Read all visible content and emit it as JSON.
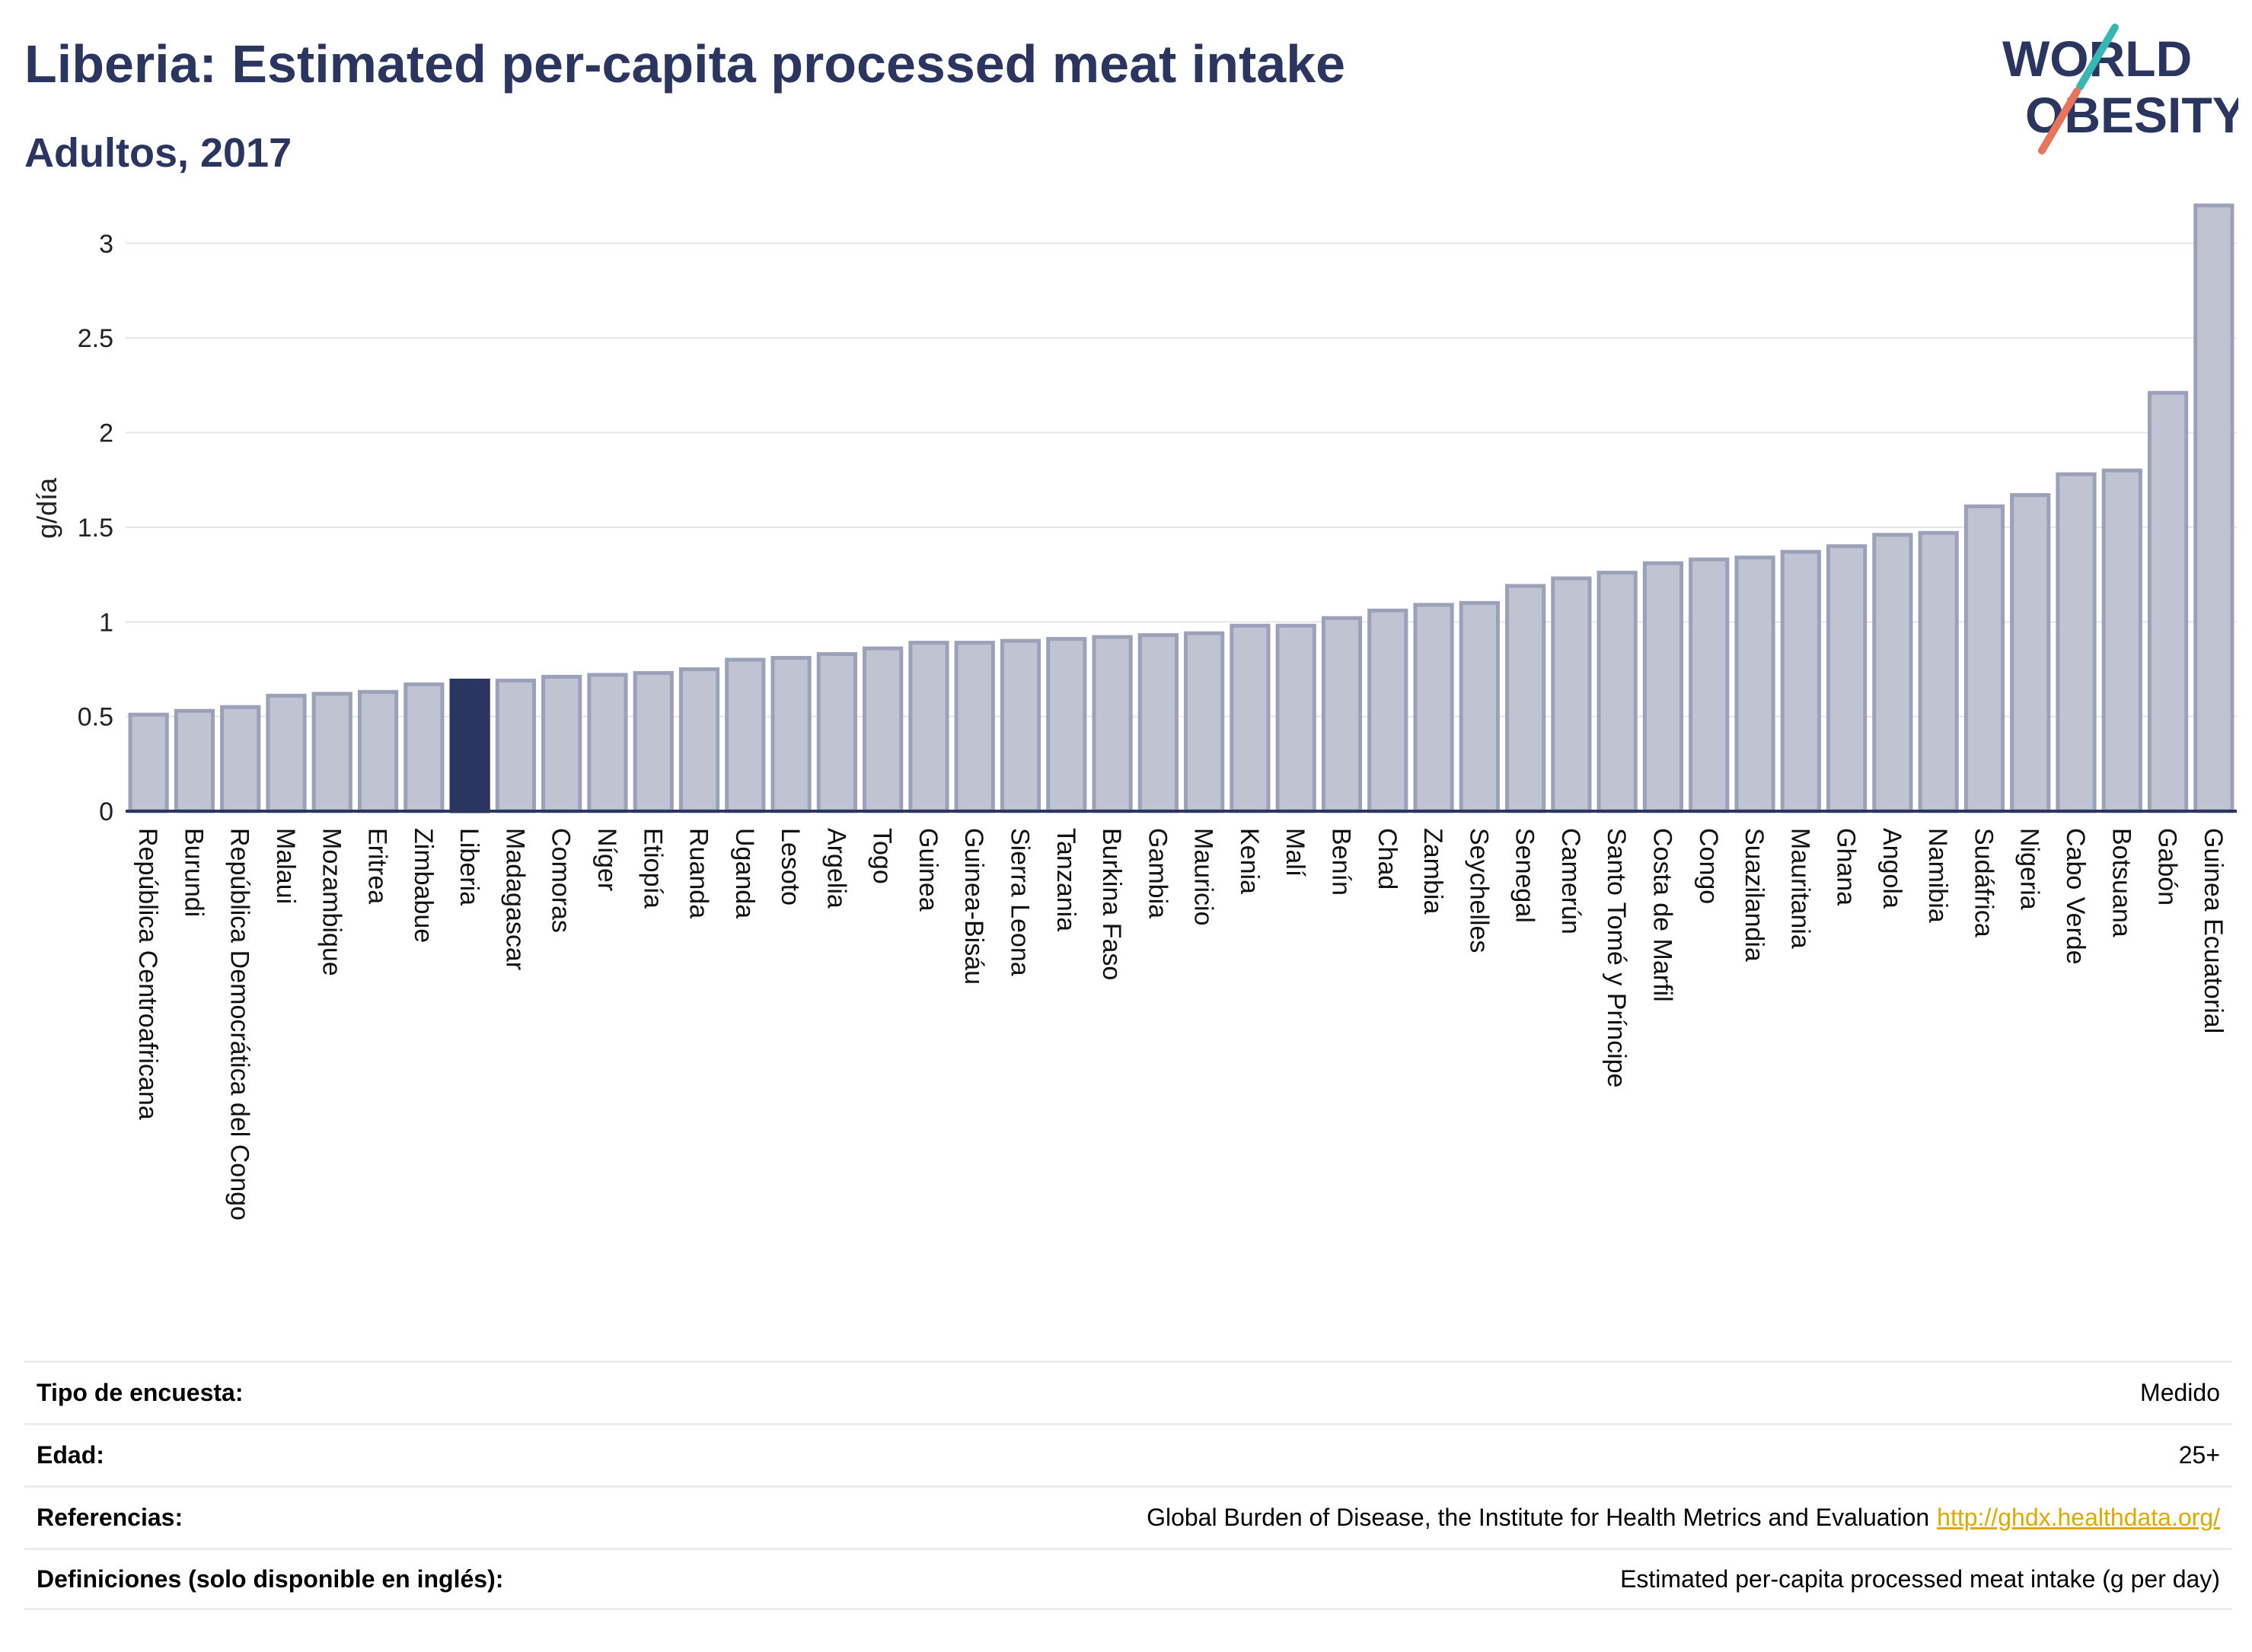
{
  "header": {
    "title": "Liberia: Estimated per-capita processed meat intake",
    "subtitle": "Adultos, 2017"
  },
  "logo": {
    "line1": "WORLD",
    "line2": "OBESITY"
  },
  "colors": {
    "title": "#2a3560",
    "bar": "#bfc3d2",
    "bar_stroke": "#9ba1b8",
    "highlight": "#2a3560",
    "link": "#e0a800",
    "grid": "#e6e6e6",
    "logo_teal": "#36b7b4",
    "logo_coral": "#e8745c"
  },
  "chart_data": {
    "type": "bar",
    "title": "Liberia: Estimated per-capita processed meat intake",
    "subtitle": "Adultos, 2017",
    "xlabel": "",
    "ylabel": "g/día",
    "ylim": [
      0,
      3.2
    ],
    "yticks": [
      0,
      0.5,
      1,
      1.5,
      2,
      2.5,
      3
    ],
    "ytick_labels": [
      "0",
      "0.5",
      "1",
      "1.5",
      "2",
      "2.5",
      "3"
    ],
    "grid": true,
    "legend": "none",
    "highlight": "Liberia",
    "categories": [
      "República Centroafricana",
      "Burundi",
      "República Democrática del Congo",
      "Malaui",
      "Mozambique",
      "Eritrea",
      "Zimbabue",
      "Liberia",
      "Madagascar",
      "Comoras",
      "Níger",
      "Etiopía",
      "Ruanda",
      "Uganda",
      "Lesoto",
      "Argelia",
      "Togo",
      "Guinea",
      "Guinea-Bisáu",
      "Sierra Leona",
      "Tanzania",
      "Burkina Faso",
      "Gambia",
      "Mauricio",
      "Kenia",
      "Malí",
      "Benín",
      "Chad",
      "Zambia",
      "Seychelles",
      "Senegal",
      "Camerún",
      "Santo Tomé y Príncipe",
      "Costa de Marfil",
      "Congo",
      "Suazilandia",
      "Mauritania",
      "Ghana",
      "Angola",
      "Namibia",
      "Sudáfrica",
      "Nigeria",
      "Cabo Verde",
      "Botsuana",
      "Gabón",
      "Guinea Ecuatorial"
    ],
    "values": [
      0.51,
      0.53,
      0.55,
      0.61,
      0.62,
      0.63,
      0.67,
      0.69,
      0.69,
      0.71,
      0.72,
      0.73,
      0.75,
      0.8,
      0.81,
      0.83,
      0.86,
      0.89,
      0.89,
      0.9,
      0.91,
      0.92,
      0.93,
      0.94,
      0.98,
      0.98,
      1.02,
      1.06,
      1.09,
      1.1,
      1.19,
      1.23,
      1.26,
      1.31,
      1.33,
      1.34,
      1.37,
      1.4,
      1.46,
      1.47,
      1.61,
      1.67,
      1.78,
      1.8,
      2.21,
      3.2
    ]
  },
  "info": [
    {
      "label": "Tipo de encuesta:",
      "value": "Medido",
      "link": ""
    },
    {
      "label": "Edad:",
      "value": "25+",
      "link": ""
    },
    {
      "label": "Referencias:",
      "value": "Global Burden of Disease, the Institute for Health Metrics and Evaluation",
      "link": "http://ghdx.healthdata.org/"
    },
    {
      "label": "Definiciones (solo disponible en inglés):",
      "value": "Estimated per-capita processed meat intake (g per day)",
      "link": ""
    }
  ]
}
